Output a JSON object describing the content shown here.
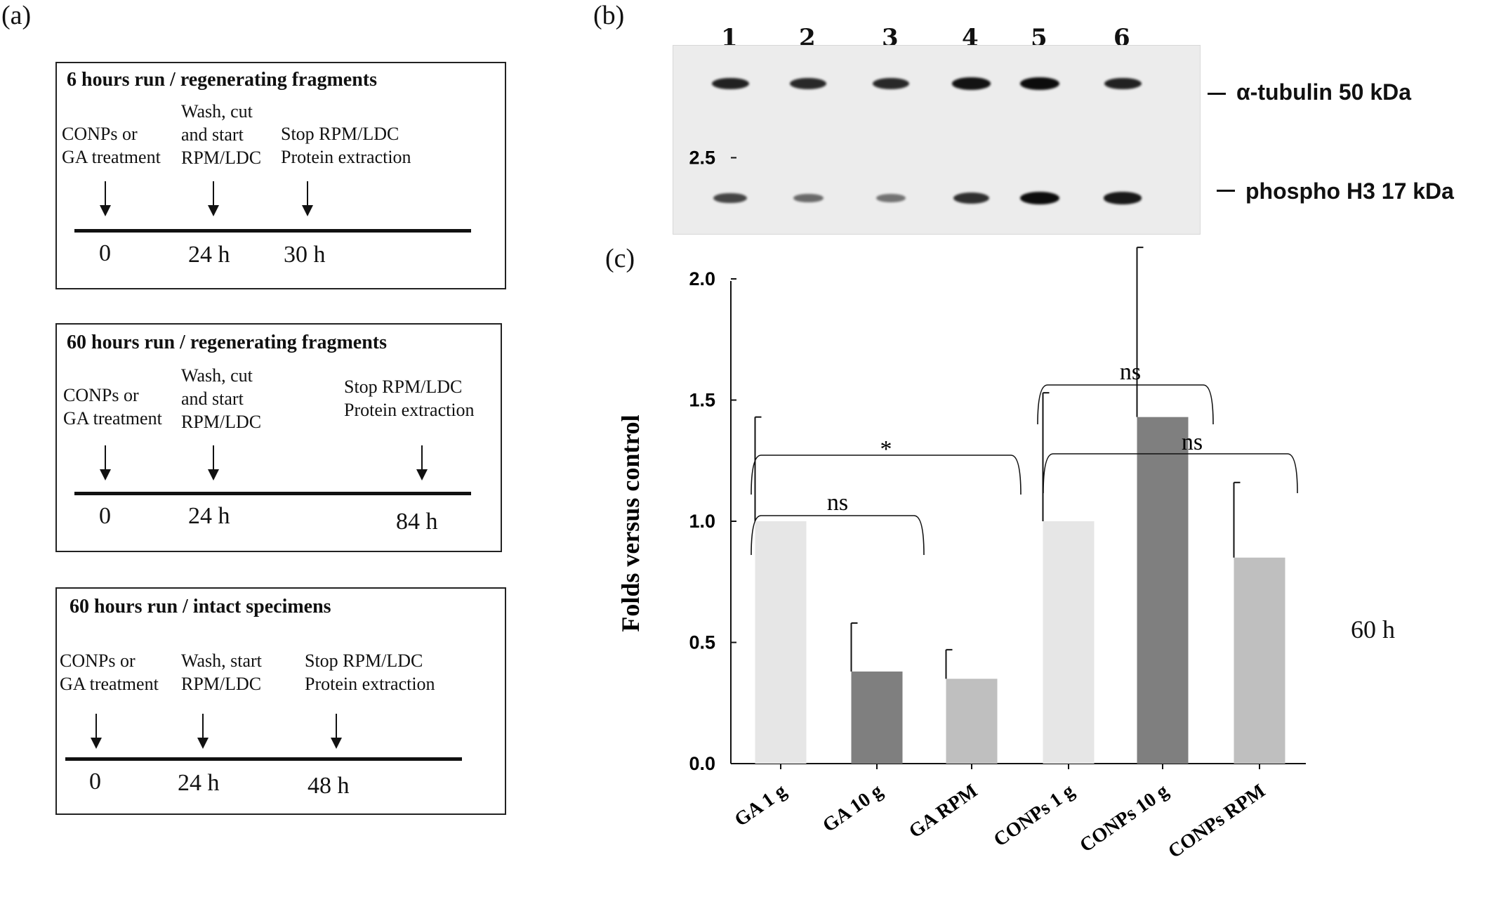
{
  "panel_a": {
    "label": "(a)",
    "boxes": [
      {
        "title": "6 hours  run / regenerating  fragments",
        "notes": [
          "CONPs or\nGA treatment",
          "Wash, cut\nand start\nRPM/LDC",
          "Stop RPM/LDC\nProtein extraction"
        ],
        "times": [
          "0",
          "24 h",
          "30 h"
        ]
      },
      {
        "title": "60 hours  run / regenerating  fragments",
        "notes": [
          "CONPs or\nGA treatment",
          "Wash, cut\nand start\nRPM/LDC",
          "Stop RPM/LDC\nProtein extraction"
        ],
        "times": [
          "0",
          "24 h",
          "84 h"
        ]
      },
      {
        "title": "60 hours  run / intact specimens",
        "notes": [
          "CONPs or\nGA treatment",
          "Wash, start\nRPM/LDC",
          "Stop RPM/LDC\nProtein extraction"
        ],
        "times": [
          "0",
          "24 h",
          "48 h"
        ]
      }
    ]
  },
  "panel_b": {
    "label": "(b)",
    "lanes": [
      "1",
      "2",
      "3",
      "4",
      "5",
      "6"
    ],
    "bands": [
      {
        "label": "α-tubulin 50 kDa",
        "intensity": [
          0.85,
          0.8,
          0.8,
          0.95,
          1.0,
          0.85
        ]
      },
      {
        "label": "phospho H3 17 kDa",
        "intensity": [
          0.6,
          0.35,
          0.3,
          0.75,
          1.0,
          0.9
        ]
      }
    ]
  },
  "panel_c": {
    "label": "(c)",
    "side_note": "60 h"
  },
  "chart_data": {
    "type": "bar",
    "title": "",
    "xlabel": "",
    "ylabel": "Folds versus control",
    "ylim": [
      0,
      2.5
    ],
    "yticks": [
      "0.0",
      "0.5",
      "1.0",
      "1.5",
      "2.0",
      "2.5"
    ],
    "categories": [
      "GA 1 g",
      "GA 10 g",
      "GA RPM",
      "CONPs 1 g",
      "CONPs 10 g",
      "CONPs RPM"
    ],
    "values": [
      1.0,
      0.38,
      0.35,
      1.0,
      1.43,
      0.85
    ],
    "errors": [
      0.43,
      0.2,
      0.12,
      0.53,
      0.7,
      0.31
    ],
    "colors": [
      "#e6e6e6",
      "#7f7f7f",
      "#bfbfbf",
      "#e6e6e6",
      "#7f7f7f",
      "#bfbfbf"
    ],
    "grid": false,
    "annotations": [
      {
        "text": "ns",
        "from": "GA 1 g",
        "to": "GA RPM"
      },
      {
        "text": "*",
        "from": "GA 1 g",
        "to": "CONPs 1 g"
      },
      {
        "text": "ns",
        "from": "CONPs 1 g",
        "to": "CONPs 10 g"
      },
      {
        "text": "ns",
        "from": "CONPs 1 g",
        "to": "CONPs RPM"
      }
    ]
  }
}
